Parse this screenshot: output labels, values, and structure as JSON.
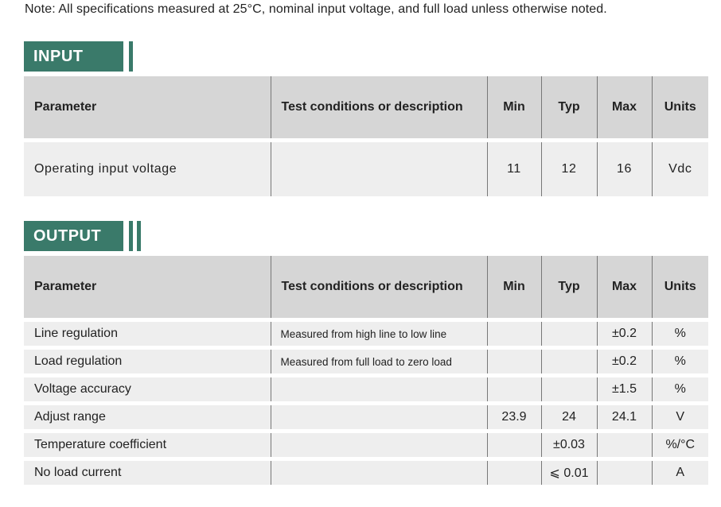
{
  "note": "Note: All specifications measured at 25°C, nominal input voltage, and full load unless otherwise noted.",
  "accent_color": "#3a7a6a",
  "columns": {
    "parameter": "Parameter",
    "test_conditions": "Test conditions or description",
    "min": "Min",
    "typ": "Typ",
    "max": "Max",
    "units": "Units"
  },
  "input": {
    "title": "INPUT",
    "rows": [
      {
        "parameter": "Operating input voltage",
        "test": "",
        "min": "11",
        "typ": "12",
        "max": "16",
        "units": "Vdc"
      }
    ]
  },
  "output": {
    "title": "OUTPUT",
    "rows": [
      {
        "parameter": "Line regulation",
        "test": "Measured from high line to low line",
        "min": "",
        "typ": "",
        "max": "±0.2",
        "units": "%"
      },
      {
        "parameter": "Load regulation",
        "test": "Measured from full load to zero load",
        "min": "",
        "typ": "",
        "max": "±0.2",
        "units": "%"
      },
      {
        "parameter": "Voltage accuracy",
        "test": "",
        "min": "",
        "typ": "",
        "max": "±1.5",
        "units": "%"
      },
      {
        "parameter": "Adjust range",
        "test": "",
        "min": "23.9",
        "typ": "24",
        "max": "24.1",
        "units": "V"
      },
      {
        "parameter": "Temperature coefficient",
        "test": "",
        "min": "",
        "typ": "±0.03",
        "max": "",
        "units": "%/°C"
      },
      {
        "parameter": "No load current",
        "test": "",
        "min": "",
        "typ": "⩽ 0.01",
        "max": "",
        "units": "A"
      }
    ]
  }
}
